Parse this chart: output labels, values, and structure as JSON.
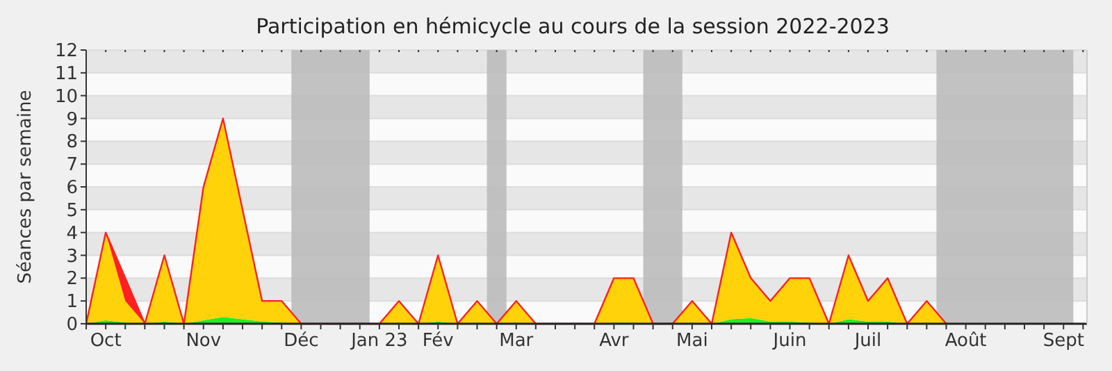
{
  "chart_data": {
    "type": "area",
    "title": "Participation en hémicycle au cours de la session 2022-2023",
    "ylabel": "Séances par semaine",
    "categories": [
      null,
      "Oct",
      null,
      null,
      null,
      null,
      "Nov",
      null,
      null,
      null,
      null,
      "Déc",
      null,
      null,
      null,
      "Jan 23",
      null,
      null,
      "Fév",
      null,
      null,
      null,
      "Mar",
      null,
      null,
      null,
      null,
      "Avr",
      null,
      null,
      null,
      "Mai",
      null,
      null,
      null,
      null,
      "Juin",
      null,
      null,
      null,
      "Juil",
      null,
      null,
      null,
      null,
      "Août",
      null,
      null,
      null,
      null,
      "Sept",
      null
    ],
    "ylim": [
      0,
      12
    ],
    "yticks": [
      0,
      1,
      2,
      3,
      4,
      5,
      6,
      7,
      8,
      9,
      10,
      11,
      12
    ],
    "grid": "y",
    "stacked": true,
    "series": [
      {
        "color": "#22ee22",
        "values": [
          0,
          0.15,
          0.05,
          0,
          0.1,
          0,
          0.15,
          0.3,
          0.2,
          0.1,
          0.05,
          0,
          0,
          0,
          0,
          0,
          0.05,
          0,
          0.1,
          0,
          0.05,
          0,
          0.05,
          0,
          0,
          0,
          0,
          0.05,
          0.05,
          0,
          0,
          0.05,
          0,
          0.2,
          0.25,
          0.1,
          0.1,
          0.05,
          0,
          0.2,
          0.1,
          0.1,
          0,
          0.05,
          0,
          null,
          null,
          null,
          null,
          null,
          null,
          null
        ]
      },
      {
        "color": "#ffd20a",
        "values": [
          0,
          3.85,
          0.95,
          0,
          2.9,
          0,
          5.85,
          8.7,
          4.8,
          0.9,
          0.95,
          0,
          0,
          0,
          0,
          0,
          0.95,
          0,
          2.9,
          0,
          0.95,
          0,
          0.95,
          0,
          0,
          0,
          0,
          1.95,
          1.95,
          0,
          0,
          0.95,
          0,
          3.8,
          1.75,
          0.9,
          1.9,
          1.95,
          0,
          2.8,
          0.9,
          1.9,
          0,
          0.95,
          0,
          null,
          null,
          null,
          null,
          null,
          null,
          null
        ]
      },
      {
        "color": "#ff2020",
        "values": [
          null,
          0,
          1,
          0,
          null,
          null,
          null,
          null,
          null,
          null,
          null,
          null,
          null,
          null,
          null,
          null,
          null,
          null,
          null,
          null,
          null,
          null,
          null,
          null,
          null,
          null,
          null,
          null,
          null,
          null,
          null,
          null,
          null,
          null,
          null,
          null,
          null,
          null,
          null,
          null,
          null,
          null,
          null,
          null,
          null,
          null,
          null,
          null,
          null,
          null,
          null,
          null
        ]
      }
    ]
  }
}
